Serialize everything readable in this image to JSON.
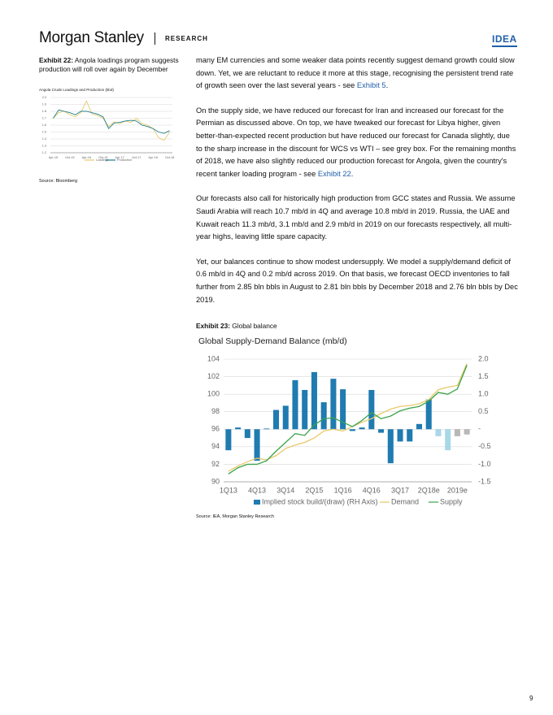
{
  "header": {
    "brand": "Morgan Stanley",
    "section": "RESEARCH",
    "tag": "IDEA"
  },
  "exhibit22": {
    "label": "Exhibit 22:",
    "caption": "Angola loadings program suggests production will roll over again by December",
    "source": "Source: Bloomberg",
    "chart_data": {
      "type": "line",
      "title": "Angola Crude Loadings and Production (kbd)",
      "categories": [
        "Apr-15",
        null,
        null,
        "Oct-15",
        null,
        null,
        "Apr-16",
        null,
        null,
        "Oct-16",
        null,
        null,
        "Apr-17",
        null,
        null,
        "Oct-17",
        null,
        null,
        "Apr-18",
        null,
        null,
        "Oct-18"
      ],
      "series": [
        {
          "name": "Loadings",
          "color": "#e8c96a",
          "values": [
            1.7,
            1.78,
            1.8,
            1.75,
            1.72,
            1.78,
            1.95,
            1.76,
            1.74,
            1.7,
            1.58,
            1.65,
            1.62,
            1.66,
            1.64,
            1.7,
            1.62,
            1.6,
            1.55,
            1.42,
            1.38,
            1.5
          ]
        },
        {
          "name": "Production",
          "color": "#1f7f8c",
          "values": [
            1.7,
            1.82,
            1.8,
            1.78,
            1.75,
            1.8,
            1.8,
            1.78,
            1.76,
            1.72,
            1.55,
            1.63,
            1.64,
            1.66,
            1.67,
            1.66,
            1.6,
            1.58,
            1.55,
            1.5,
            1.48,
            1.52
          ]
        }
      ],
      "ylim": [
        1.2,
        2.0
      ],
      "yticks": [
        {
          "value": 1.2,
          "label": "1.2"
        },
        1.3,
        1.4,
        1.5,
        1.6,
        1.7,
        1.8,
        1.9,
        {
          "value": 2.0,
          "label": "2.0"
        }
      ],
      "grid": true
    }
  },
  "body": {
    "paragraphs": [
      {
        "text": "many EM currencies and some weaker data points recently suggest demand growth could slow down. Yet, we are reluctant to reduce it more at this stage, recognising the persistent trend rate of growth seen over the last several years - see ",
        "link": "Exhibit 5",
        "after": "."
      },
      {
        "text": "On the supply side, we have reduced our forecast for Iran and increased our forecast for the Permian as discussed above. On top, we have tweaked our forecast for Libya higher, given better-than-expected recent production but have reduced our forecast for Canada slightly, due to the sharp increase in the discount for WCS vs WTI – see grey box. For the remaining months of 2018, we have also slightly reduced our production forecast for Angola, given the country's recent tanker loading program - see ",
        "link": "Exhibit 22",
        "after": "."
      },
      {
        "text": "Our forecasts also call for historically high production from GCC states and Russia. We assume Saudi Arabia will reach 10.7 mb/d in 4Q and average 10.8 mb/d in 2019. Russia, the UAE and Kuwait reach 11.3 mb/d, 3.1 mb/d and 2.9 mb/d in 2019 on our forecasts respectively, all multi-year highs, leaving little spare capacity."
      },
      {
        "text": "Yet, our balances continue to show modest undersupply. We model a supply/demand deficit of 0.6 mb/d in 4Q and 0.2 mb/d across 2019. On that basis, we forecast OECD inventories to fall further from 2.85 bln bbls in August to 2.81 bln bbls by December 2018 and 2.76 bln bbls by Dec 2019."
      }
    ]
  },
  "exhibit23": {
    "label": "Exhibit 23:",
    "caption": "Global balance",
    "source": "Source: IEA, Morgan Stanley Research",
    "chart_data": {
      "type": "bar-line",
      "title": "Global Supply-Demand Balance (mb/d)",
      "categories": [
        "1Q13",
        null,
        null,
        "4Q13",
        null,
        null,
        "3Q14",
        null,
        null,
        "2Q15",
        null,
        null,
        "1Q16",
        null,
        null,
        "4Q16",
        null,
        null,
        "3Q17",
        null,
        null,
        "2Q18e",
        null,
        null,
        "2019e",
        null
      ],
      "series": [
        {
          "name": "Implied stock build/(draw) (RH Axis)",
          "color": "#1f7bb0",
          "axis": "y2",
          "kind": "bar",
          "colors": [
            "#1f7bb0",
            "#1f7bb0",
            "#1f7bb0",
            "#1f7bb0",
            "#1f7bb0",
            "#1f7bb0",
            "#1f7bb0",
            "#1f7bb0",
            "#1f7bb0",
            "#1f7bb0",
            "#1f7bb0",
            "#1f7bb0",
            "#1f7bb0",
            "#1f7bb0",
            "#1f7bb0",
            "#1f7bb0",
            "#1f7bb0",
            "#1f7bb0",
            "#1f7bb0",
            "#1f7bb0",
            "#1f7bb0",
            "#1f7bb0",
            "#a8d8e8",
            "#a8d8e8",
            "#b8b8b8",
            "#b8b8b8"
          ],
          "values": [
            -0.6,
            0.05,
            -0.25,
            -0.9,
            0.02,
            0.55,
            0.67,
            1.4,
            1.12,
            1.63,
            0.77,
            1.44,
            1.14,
            -0.05,
            0.05,
            1.12,
            -0.1,
            -0.97,
            -0.35,
            -0.35,
            0.15,
            0.85,
            -0.2,
            -0.6,
            -0.2,
            -0.15
          ]
        },
        {
          "name": "Demand",
          "color": "#e8c96a",
          "kind": "line",
          "values": [
            91.2,
            91.8,
            92.3,
            92.7,
            92.5,
            93.0,
            93.8,
            94.2,
            94.5,
            95.0,
            95.8,
            96.0,
            95.8,
            96.3,
            96.8,
            97.2,
            97.8,
            98.3,
            98.6,
            98.7,
            98.9,
            99.4,
            100.5,
            100.8,
            101.0,
            103.5
          ]
        },
        {
          "name": "Supply",
          "color": "#3aa34a",
          "kind": "line",
          "values": [
            90.9,
            91.6,
            92.0,
            92.0,
            92.4,
            93.5,
            94.5,
            95.5,
            95.3,
            96.5,
            97.2,
            97.3,
            96.8,
            96.3,
            97.0,
            97.9,
            97.2,
            97.5,
            98.1,
            98.4,
            98.6,
            99.2,
            100.2,
            100.0,
            100.6,
            103.3
          ]
        }
      ],
      "ylim": [
        90,
        104
      ],
      "yticks": [
        90,
        92,
        94,
        96,
        98,
        100,
        102,
        104
      ],
      "y2lim": [
        -1.5,
        2.0
      ],
      "y2ticks": [
        {
          "value": -1.5,
          "label": "-1.5"
        },
        {
          "value": -1.0,
          "label": "-1.0"
        },
        {
          "value": -0.5,
          "label": "-0.5"
        },
        {
          "value": 0,
          "label": "-"
        },
        {
          "value": 0.5,
          "label": "0.5"
        },
        {
          "value": 1.0,
          "label": "1.0"
        },
        {
          "value": 1.5,
          "label": "1.5"
        },
        {
          "value": 2.0,
          "label": "2.0"
        }
      ],
      "grid": true
    }
  },
  "page_number": "9"
}
